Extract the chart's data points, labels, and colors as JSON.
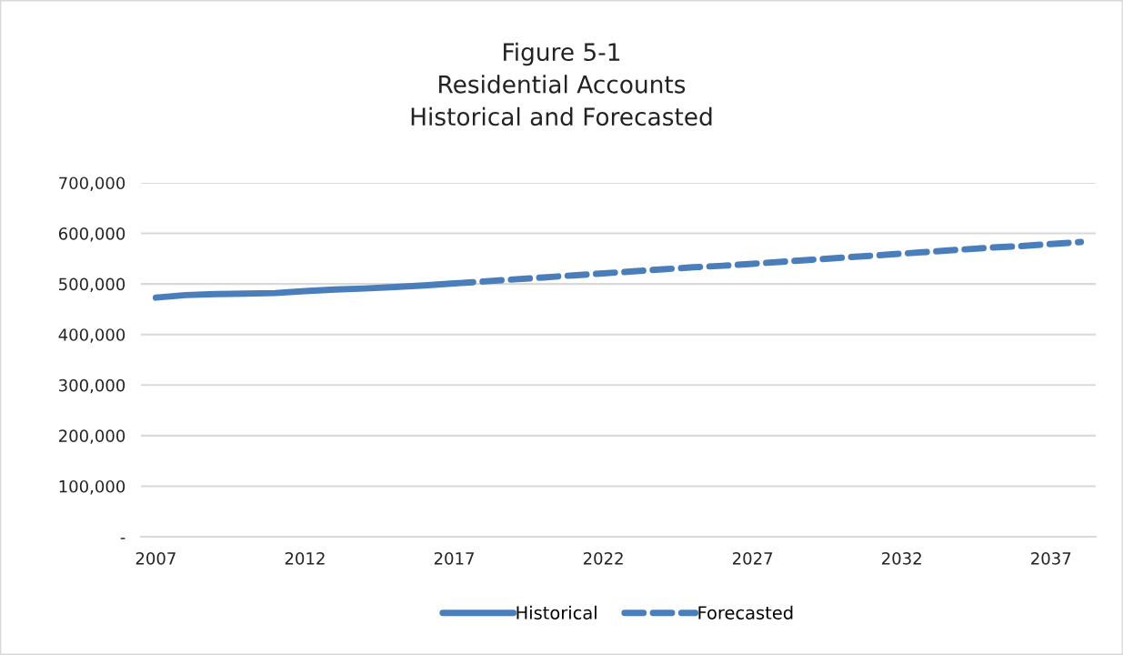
{
  "chart_data": {
    "type": "line",
    "title": "Figure 5-1\nResidential Accounts\nHistorical and Forecasted",
    "categories": [
      "2007",
      null,
      null,
      null,
      null,
      "2012",
      null,
      null,
      null,
      null,
      "2017",
      null,
      null,
      null,
      null,
      "2022",
      null,
      null,
      null,
      null,
      "2027",
      null,
      null,
      null,
      null,
      "2032",
      null,
      null,
      null,
      null,
      "2037",
      null
    ],
    "series": [
      {
        "name": "Historical",
        "color": "#4a7ebb",
        "line_style": "solid",
        "values": [
          473000,
          478000,
          480000,
          481000,
          482000,
          486000,
          489000,
          491000,
          494000,
          497000,
          501000,
          null,
          null,
          null,
          null,
          null,
          null,
          null,
          null,
          null,
          null,
          null,
          null,
          null,
          null,
          null,
          null,
          null,
          null,
          null,
          null,
          null
        ]
      },
      {
        "name": "Forecasted",
        "color": "#4a7ebb",
        "line_style": "dashed",
        "values": [
          null,
          null,
          null,
          null,
          null,
          null,
          null,
          null,
          null,
          null,
          501000,
          505000,
          509000,
          513000,
          517000,
          521000,
          525000,
          529000,
          533000,
          536000,
          540000,
          544000,
          548000,
          552000,
          556000,
          560000,
          564000,
          568000,
          572000,
          575000,
          579000,
          583000
        ]
      }
    ],
    "ylim": [
      0,
      700000
    ],
    "yticks": [
      {
        "value": 0,
        "label": "-"
      },
      {
        "value": 100000,
        "label": "100,000"
      },
      {
        "value": 200000,
        "label": "200,000"
      },
      {
        "value": 300000,
        "label": "300,000"
      },
      {
        "value": 400000,
        "label": "400,000"
      },
      {
        "value": 500000,
        "label": "500,000"
      },
      {
        "value": 600000,
        "label": "600,000"
      },
      {
        "value": 700000,
        "label": "700,000"
      }
    ],
    "grid": "y",
    "legend": "bottom",
    "marker": "none"
  }
}
